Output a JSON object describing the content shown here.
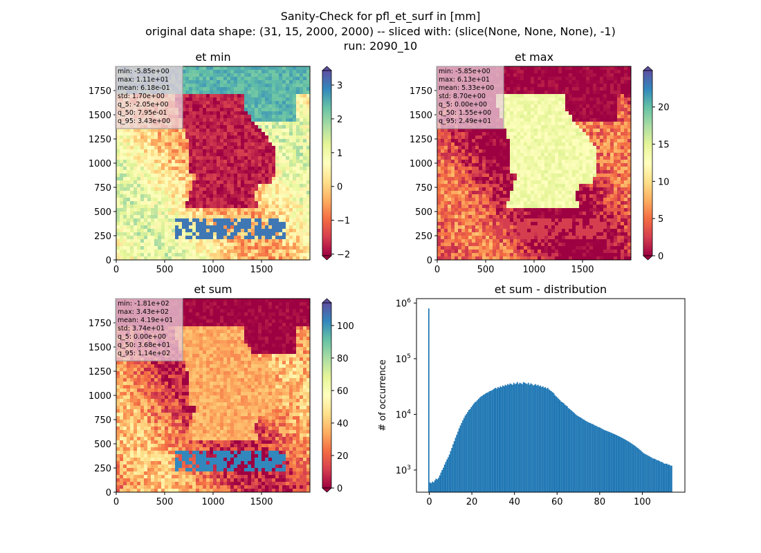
{
  "figure": {
    "title_lines": [
      "Sanity-Check for pfl_et_surf in [mm]",
      "original data shape: (31, 15, 2000, 2000) -- sliced with: (slice(None, None, None), -1)",
      "run: 2090_10"
    ]
  },
  "chart_data": [
    {
      "type": "heatmap",
      "title": "et min",
      "colormap": "Spectral",
      "x_ticks": [
        "0",
        "500",
        "1000",
        "1500"
      ],
      "y_ticks": [
        "0",
        "250",
        "500",
        "750",
        "1000",
        "1250",
        "1500",
        "1750"
      ],
      "xlim": [
        0,
        2000
      ],
      "ylim": [
        0,
        2000
      ],
      "colorbar": {
        "range": [
          -2.05,
          3.43
        ],
        "ticks": [
          "−2",
          "−1",
          "0",
          "1",
          "2",
          "3"
        ],
        "tick_values": [
          -2,
          -1,
          0,
          1,
          2,
          3
        ],
        "extend": "both"
      },
      "stats": [
        "min: -5.85e+00",
        "max: 1.11e+01",
        "mean: 6.18e-01",
        "std: 1.70e+00",
        "q_5: -2.05e+00",
        "q_50: 7.95e-01",
        "q_95: 3.43e+00"
      ],
      "land_level": 0.05,
      "sea_level": 0.45,
      "north_level": 0.82
    },
    {
      "type": "heatmap",
      "title": "et max",
      "colormap": "Spectral",
      "x_ticks": [
        "0",
        "500",
        "1000",
        "1500"
      ],
      "y_ticks": [
        "0",
        "250",
        "500",
        "750",
        "1000",
        "1250",
        "1500",
        "1750"
      ],
      "xlim": [
        0,
        2000
      ],
      "ylim": [
        0,
        2000
      ],
      "colorbar": {
        "range": [
          0,
          24.9
        ],
        "ticks": [
          "0",
          "5",
          "10",
          "15",
          "20"
        ],
        "tick_values": [
          0,
          5,
          10,
          15,
          20
        ],
        "extend": "both"
      },
      "stats": [
        "min: -5.85e+00",
        "max: 6.13e+01",
        "mean: 5.33e+00",
        "std: 8.70e+00",
        "q_5: 0.00e+00",
        "q_50: 1.55e+00",
        "q_95: 2.49e+01"
      ],
      "land_level": 0.55,
      "sea_level": 0.08,
      "north_level": 0.0
    },
    {
      "type": "heatmap",
      "title": "et sum",
      "colormap": "Spectral",
      "x_ticks": [
        "0",
        "500",
        "1000",
        "1500"
      ],
      "y_ticks": [
        "0",
        "250",
        "500",
        "750",
        "1000",
        "1250",
        "1500",
        "1750"
      ],
      "xlim": [
        0,
        2000
      ],
      "ylim": [
        0,
        2000
      ],
      "colorbar": {
        "range": [
          0,
          114
        ],
        "ticks": [
          "0",
          "20",
          "40",
          "60",
          "80",
          "100"
        ],
        "tick_values": [
          0,
          20,
          40,
          60,
          80,
          100
        ],
        "extend": "both"
      },
      "stats": [
        "min: -1.81e+02",
        "max: 3.43e+02",
        "mean: 4.19e+01",
        "std: 3.74e+01",
        "q_5: 0.00e+00",
        "q_50: 3.68e+01",
        "q_95: 1.14e+02"
      ],
      "land_level": 0.3,
      "sea_level": 0.2,
      "north_level": 0.0
    },
    {
      "type": "bar",
      "title": "et sum - distribution",
      "ylabel": "# of occurrence",
      "xlabel": "",
      "yscale": "log",
      "xlim": [
        -6,
        120
      ],
      "ylim": [
        400,
        1200000
      ],
      "x_ticks": [
        "0",
        "20",
        "40",
        "60",
        "80",
        "100"
      ],
      "x_tick_values": [
        0,
        20,
        40,
        60,
        80,
        100
      ],
      "y_ticks": [
        "10^3",
        "10^4",
        "10^5",
        "10^6"
      ],
      "y_tick_values": [
        1000,
        10000,
        100000,
        1000000
      ],
      "bin_start": -0.5,
      "bin_width": 0.57,
      "values": [
        800000,
        600,
        580,
        620,
        600,
        650,
        700,
        680,
        720,
        800,
        900,
        1000,
        1100,
        1250,
        1400,
        1550,
        1700,
        1900,
        2200,
        2500,
        2900,
        3300,
        3800,
        4300,
        4900,
        5600,
        6300,
        7000,
        7800,
        8600,
        9500,
        10200,
        11000,
        12000,
        12500,
        13500,
        14500,
        15500,
        16500,
        17000,
        18000,
        19000,
        20000,
        21000,
        21500,
        22500,
        23000,
        24000,
        24500,
        25000,
        26000,
        26500,
        27000,
        28000,
        29000,
        30000,
        29000,
        31000,
        30000,
        32000,
        31000,
        33000,
        32000,
        34000,
        33000,
        35000,
        34000,
        36000,
        35000,
        34000,
        37000,
        35000,
        36000,
        38000,
        35000,
        37000,
        36000,
        35000,
        38000,
        37000,
        36000,
        35000,
        37000,
        34000,
        36000,
        35000,
        33000,
        34000,
        35000,
        33000,
        34000,
        32000,
        33000,
        31000,
        32000,
        30000,
        31000,
        29000,
        30000,
        28000,
        27000,
        26000,
        25000,
        24000,
        22000,
        21000,
        20000,
        19000,
        18000,
        17000,
        16500,
        16000,
        15000,
        14500,
        14000,
        13000,
        12500,
        12000,
        11500,
        11000,
        10500,
        10000,
        9600,
        9300,
        9000,
        8800,
        8500,
        8200,
        8000,
        7700,
        7500,
        7300,
        7100,
        7000,
        6800,
        6700,
        6500,
        6300,
        6200,
        6000,
        5900,
        5800,
        5600,
        5500,
        5300,
        5200,
        5100,
        5000,
        4900,
        4800,
        4700,
        4600,
        4500,
        4400,
        4300,
        4200,
        4100,
        4000,
        3900,
        3800,
        3700,
        3600,
        3500,
        3400,
        3300,
        3200,
        3100,
        3000,
        2900,
        2800,
        2700,
        2600,
        2500,
        2400,
        2300,
        2200,
        2100,
        2000,
        1950,
        1900,
        1850,
        1800,
        1750,
        1700,
        1650,
        1600,
        1600,
        1550,
        1500,
        1500,
        1450,
        1400,
        1400,
        1350,
        1300,
        1300,
        1300,
        1250,
        1250,
        1200,
        1200
      ],
      "bar_color": "#1f77b4"
    }
  ]
}
